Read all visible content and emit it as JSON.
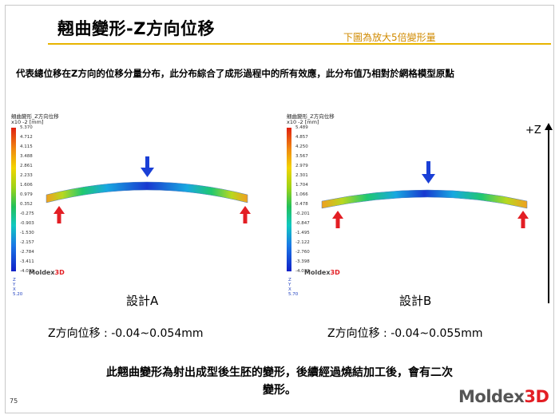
{
  "title": "翹曲變形-Z方向位移",
  "note": "下圖為放大5倍變形量",
  "description": "代表總位移在Z方向的位移分量分布，此分布綜合了成形過程中的所有效應，此分布值乃相對於網格模型原點",
  "panel_a": {
    "plot_title": "翹曲變形_Z方向位移",
    "unit": "x10 -2 [mm]",
    "scale": [
      "5.370",
      "4.712",
      "4.115",
      "3.488",
      "2.861",
      "2.233",
      "1.606",
      "0.979",
      "0.352",
      "-0.275",
      "-0.903",
      "-1.530",
      "-2.157",
      "-2.784",
      "-3.411",
      "-4.039"
    ],
    "logo_text": "Moldex",
    "logo_accent": "3D",
    "axis_text": [
      "Z",
      "Y",
      "X"
    ],
    "axis_scale": "5.20",
    "caption": "設計A",
    "displacement": "Z方向位移 : -0.04~0.054mm"
  },
  "panel_b": {
    "plot_title": "翹曲變形_Z方向位移",
    "unit": "x10 -2 [mm]",
    "scale": [
      "5.489",
      "4.857",
      "4.250",
      "3.567",
      "2.979",
      "2.301",
      "1.704",
      "1.066",
      "0.478",
      "-0.201",
      "-0.847",
      "-1.495",
      "-2.122",
      "-2.760",
      "-3.398",
      "-4.039"
    ],
    "logo_text": "Moldex",
    "logo_accent": "3D",
    "axis_text": [
      "Z",
      "Y",
      "X"
    ],
    "axis_scale": "5.70",
    "caption": "設計B",
    "displacement": "Z方向位移 : -0.04~0.055mm"
  },
  "z_label": "+Z",
  "conclusion_line1": "此翹曲變形為射出成型後生胚的變形，後續經過燒結加工後，會有二次",
  "conclusion_line2": "變形。",
  "page_number": "75",
  "brand_text": "Moldex",
  "brand_accent": "3D",
  "colors": {
    "accent_line": "#e8b400",
    "note": "#d08a00",
    "arrow_down": "#1a3fd6",
    "arrow_up": "#e31e24",
    "brand_red": "#e31e24"
  }
}
